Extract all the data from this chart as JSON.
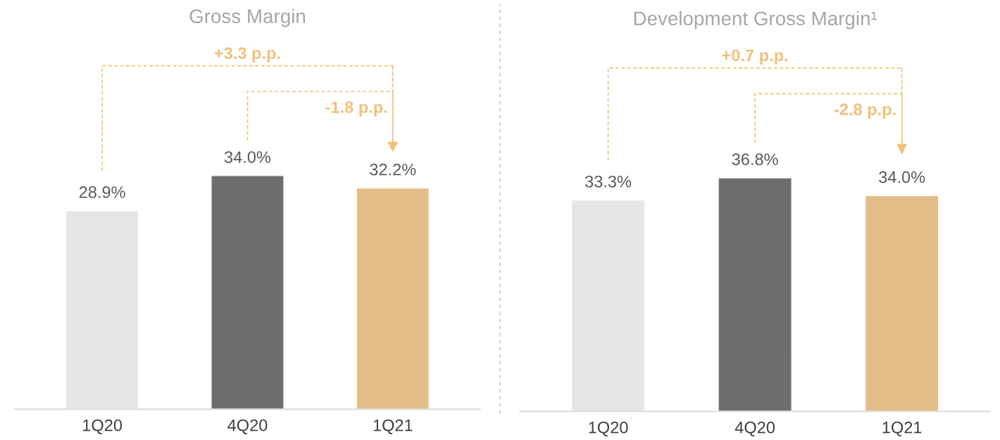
{
  "chart_data": [
    {
      "type": "bar",
      "title": "Gross Margin",
      "categories": [
        "1Q20",
        "4Q20",
        "1Q21"
      ],
      "values": [
        28.9,
        34.0,
        32.2
      ],
      "colors": [
        "#e6e6e6",
        "#6d6d6b",
        "#f2c078"
      ],
      "value_labels": [
        "28.9%",
        "34.0%",
        "32.2%"
      ],
      "annotations": [
        "+3.3 p.p.",
        "-1.8 p.p."
      ],
      "tick_labels": "x"
    },
    {
      "type": "bar",
      "title": "Development Gross Margin¹",
      "categories": [
        "1Q20",
        "4Q20",
        "1Q21"
      ],
      "values": [
        33.3,
        36.8,
        34.0
      ],
      "colors": [
        "#e6e6e6",
        "#6d6d6b",
        "#f2c078"
      ],
      "value_labels": [
        "33.3%",
        "36.8%",
        "34.0%"
      ],
      "annotations": [
        "+0.7 p.p.",
        "-2.8 p.p."
      ],
      "tick_labels": "x"
    }
  ]
}
